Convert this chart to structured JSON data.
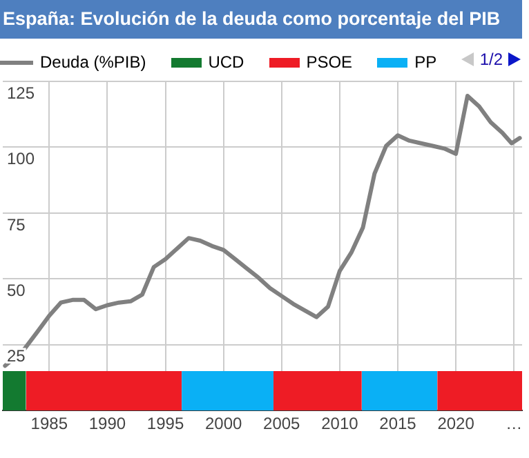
{
  "chart_data": {
    "type": "line",
    "title": "España: Evolución de la deuda como porcentaje del PIB",
    "series": [
      {
        "name": "Deuda (%PIB)",
        "color": "#808080",
        "x": [
          1981.2,
          1982.8,
          1984,
          1985,
          1986,
          1987,
          1988,
          1989,
          1990,
          1991,
          1992,
          1993,
          1994,
          1995,
          1996,
          1997,
          1998,
          1999,
          2000,
          2001,
          2002,
          2003,
          2004,
          2005,
          2006,
          2007,
          2008,
          2009,
          2010,
          2011,
          2012,
          2013,
          2014,
          2015,
          2016,
          2017,
          2018,
          2019,
          2020,
          2021,
          2022,
          2023,
          2024,
          2024.8,
          2025.5
        ],
        "values": [
          17,
          23,
          30,
          36,
          41,
          42,
          42,
          38.5,
          40,
          41,
          41.5,
          44,
          54.5,
          57.5,
          61.5,
          65.5,
          64.5,
          62.5,
          61,
          57.5,
          54,
          50.5,
          46.5,
          43.5,
          40.5,
          38,
          35.5,
          39.5,
          53,
          60,
          69.5,
          90,
          100.5,
          104.5,
          102.5,
          101.5,
          100.5,
          99.5,
          97.5,
          119.5,
          115.5,
          109.5,
          105.5,
          101.5,
          103.5
        ]
      },
      {
        "name": "UCD",
        "type": "area",
        "color": "#137a30",
        "x": [
          1981,
          1983
        ],
        "values": [
          15,
          15
        ]
      },
      {
        "name": "PSOE",
        "type": "area",
        "color": "#ee1c25",
        "x": [
          1983,
          1996.4,
          2000,
          2004.3,
          2011.9,
          2015,
          2018.4,
          2025.7
        ],
        "values": [
          15,
          15,
          null,
          15,
          15,
          null,
          15,
          15
        ]
      },
      {
        "name": "PP",
        "type": "area",
        "color": "#0ab0f5",
        "x": [
          1996.4,
          2004.3,
          2008,
          2011.9,
          2018.4
        ],
        "values": [
          15,
          15,
          null,
          15,
          15
        ]
      }
    ],
    "xlim": [
      1981,
      2025.7
    ],
    "xticks": [
      1985,
      1990,
      1995,
      2000,
      2005,
      2010,
      2015,
      2020,
      {
        "value": 2025,
        "label": "…"
      }
    ],
    "ylim": [
      0,
      125
    ],
    "yticks": [
      25,
      50,
      75,
      100,
      125
    ],
    "grid": true,
    "legend": "top",
    "marker": "none",
    "line_style": "solid",
    "annotations": [
      "1/2"
    ]
  }
}
